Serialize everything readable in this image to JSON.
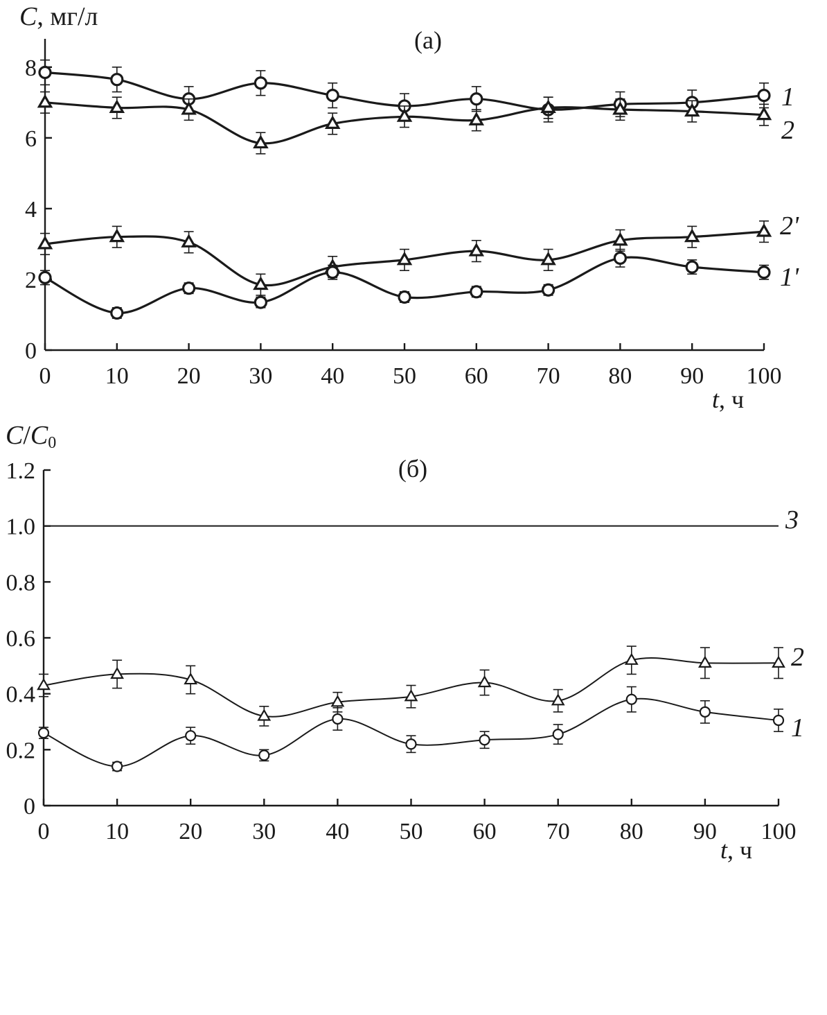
{
  "chart_data": [
    {
      "type": "line",
      "panel_label": "(а)",
      "ylabel_var": "C",
      "ylabel_unit": ", мг/л",
      "xlabel_var": "t",
      "xlabel_unit": ", ч",
      "xlim": [
        0,
        100
      ],
      "ylim": [
        0,
        8.8
      ],
      "x_ticks": [
        0,
        10,
        20,
        30,
        40,
        50,
        60,
        70,
        80,
        90,
        100
      ],
      "y_ticks": [
        0,
        2,
        4,
        6,
        8
      ],
      "x_tick_labels": [
        "0",
        "10",
        "20",
        "30",
        "40",
        "50",
        "60",
        "70",
        "80",
        "90",
        "100"
      ],
      "y_tick_labels": [
        "0",
        "2",
        "4",
        "6",
        "8"
      ],
      "grid": false,
      "x": [
        0,
        10,
        20,
        30,
        40,
        50,
        60,
        70,
        80,
        90,
        100
      ],
      "series": [
        {
          "label": "1",
          "marker": "circle",
          "values": [
            7.85,
            7.65,
            7.1,
            7.55,
            7.2,
            6.9,
            7.1,
            6.8,
            6.95,
            7.0,
            7.2
          ],
          "errors": [
            0.35,
            0.35,
            0.35,
            0.35,
            0.35,
            0.35,
            0.35,
            0.35,
            0.35,
            0.35,
            0.35
          ]
        },
        {
          "label": "2",
          "marker": "triangle",
          "values": [
            7.0,
            6.85,
            6.8,
            5.85,
            6.4,
            6.6,
            6.5,
            6.85,
            6.8,
            6.75,
            6.65
          ],
          "errors": [
            0.3,
            0.3,
            0.3,
            0.3,
            0.3,
            0.3,
            0.3,
            0.3,
            0.3,
            0.3,
            0.3
          ]
        },
        {
          "label": "2'",
          "marker": "triangle",
          "values": [
            3.0,
            3.2,
            3.05,
            1.85,
            2.35,
            2.55,
            2.8,
            2.55,
            3.1,
            3.2,
            3.35
          ],
          "errors": [
            0.3,
            0.3,
            0.3,
            0.3,
            0.3,
            0.3,
            0.3,
            0.3,
            0.3,
            0.3,
            0.3
          ]
        },
        {
          "label": "1'",
          "marker": "circle",
          "values": [
            2.05,
            1.05,
            1.75,
            1.35,
            2.2,
            1.5,
            1.65,
            1.7,
            2.6,
            2.35,
            2.2
          ],
          "errors": [
            0.2,
            0.15,
            0.15,
            0.15,
            0.2,
            0.15,
            0.15,
            0.15,
            0.25,
            0.2,
            0.2
          ]
        }
      ]
    },
    {
      "type": "line",
      "panel_label": "(б)",
      "ylabel_var_a": "C",
      "ylabel_var_b": "C",
      "ylabel_sub": "0",
      "xlabel_var": "t",
      "xlabel_unit": ", ч",
      "xlim": [
        0,
        100
      ],
      "ylim": [
        0,
        1.2
      ],
      "x_ticks": [
        0,
        10,
        20,
        30,
        40,
        50,
        60,
        70,
        80,
        90,
        100
      ],
      "y_ticks": [
        0,
        0.2,
        0.4,
        0.6,
        0.8,
        1.0,
        1.2
      ],
      "x_tick_labels": [
        "0",
        "10",
        "20",
        "30",
        "40",
        "50",
        "60",
        "70",
        "80",
        "90",
        "100"
      ],
      "y_tick_labels": [
        "0",
        "0.2",
        "0.4",
        "0.6",
        "0.8",
        "1.0",
        "1.2"
      ],
      "grid": false,
      "x": [
        0,
        10,
        20,
        30,
        40,
        50,
        60,
        70,
        80,
        90,
        100
      ],
      "series": [
        {
          "label": "3",
          "marker": "none",
          "values": [
            1.0,
            1.0,
            1.0,
            1.0,
            1.0,
            1.0,
            1.0,
            1.0,
            1.0,
            1.0,
            1.0
          ],
          "errors": []
        },
        {
          "label": "2",
          "marker": "triangle",
          "values": [
            0.43,
            0.47,
            0.45,
            0.32,
            0.37,
            0.39,
            0.44,
            0.375,
            0.52,
            0.51,
            0.51
          ],
          "errors": [
            0.04,
            0.05,
            0.05,
            0.035,
            0.035,
            0.04,
            0.045,
            0.04,
            0.05,
            0.055,
            0.055
          ]
        },
        {
          "label": "1",
          "marker": "circle",
          "values": [
            0.26,
            0.14,
            0.25,
            0.18,
            0.31,
            0.22,
            0.235,
            0.255,
            0.38,
            0.335,
            0.305
          ],
          "errors": [
            0.02,
            0.015,
            0.03,
            0.02,
            0.04,
            0.03,
            0.03,
            0.035,
            0.045,
            0.04,
            0.04
          ]
        }
      ]
    }
  ]
}
